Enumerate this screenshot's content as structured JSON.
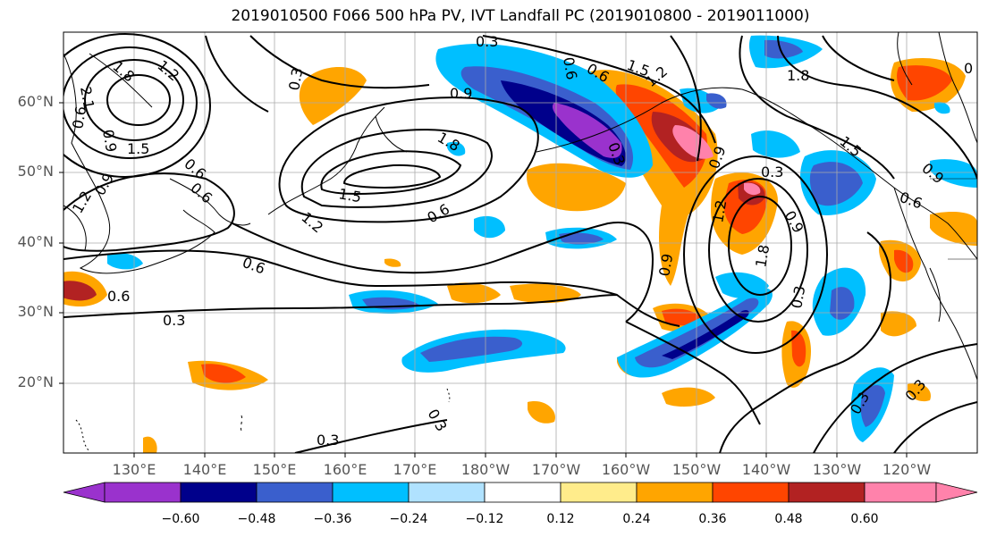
{
  "title": "2019010500 F066 500 hPa PV, IVT Landfall PC (2019010800 - 2019011000)",
  "lat_labels": [
    "60°N",
    "50°N",
    "40°N",
    "30°N",
    "20°N"
  ],
  "lon_labels": [
    "130°E",
    "140°E",
    "150°E",
    "160°E",
    "170°E",
    "180°W",
    "170°W",
    "160°W",
    "150°W",
    "140°W",
    "130°W",
    "120°W"
  ],
  "colorbar": {
    "colors": [
      "#9a32cd",
      "#00008b",
      "#3a5fcd",
      "#00bfff",
      "#b0e2ff",
      "#ffffff",
      "#ffec8b",
      "#ffa500",
      "#ff4500",
      "#b22222",
      "#ff82ab"
    ],
    "tick_labels": [
      "−0.60",
      "−0.48",
      "−0.36",
      "−0.24",
      "−0.12",
      "0.12",
      "0.24",
      "0.36",
      "0.48",
      "0.60"
    ]
  },
  "contour_labels": [
    "0.3",
    "0.6",
    "0.9",
    "1.2",
    "1.5",
    "1.8",
    "2.1"
  ]
}
